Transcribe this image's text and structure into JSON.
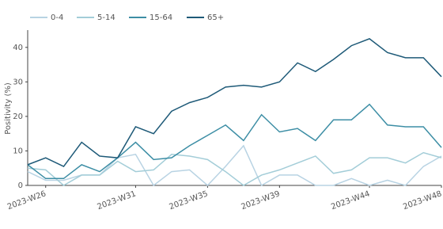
{
  "chart_data": {
    "type": "line",
    "y_label": "Positivity (%)",
    "categories": [
      null,
      "2023-W26",
      null,
      null,
      null,
      null,
      "2023-W31",
      null,
      null,
      null,
      "2023-W35",
      null,
      null,
      null,
      "2023-W39",
      null,
      null,
      null,
      null,
      "2023-W44",
      null,
      null,
      null,
      "2023-W48"
    ],
    "series": [
      {
        "name": "0-4",
        "color": "#b8d3e3",
        "values": [
          4,
          1.5,
          1.5,
          3,
          3,
          8,
          9,
          0,
          4,
          4.5,
          0,
          5.5,
          11.5,
          0,
          3,
          3,
          0,
          0,
          2,
          0,
          1.5,
          0,
          5.5,
          8.5
        ]
      },
      {
        "name": "5-14",
        "color": "#a3cdd8",
        "values": [
          5,
          4.5,
          0,
          3,
          3,
          7,
          4,
          4.5,
          9,
          8.5,
          7.5,
          4,
          0,
          3,
          4.5,
          6.5,
          8.5,
          3.5,
          4.5,
          8,
          8,
          6.5,
          9.5,
          8
        ]
      },
      {
        "name": "15-64",
        "color": "#3d8ea5",
        "values": [
          6,
          2,
          2,
          6,
          4,
          8,
          12.5,
          7.5,
          8,
          11.5,
          14.5,
          17.5,
          13,
          20.5,
          15.5,
          16.5,
          13,
          19,
          19,
          23.5,
          17.5,
          17,
          17,
          11
        ]
      },
      {
        "name": "65+",
        "color": "#1e5a78",
        "values": [
          6,
          8,
          5.5,
          12.5,
          8.5,
          8,
          17,
          15,
          21.5,
          24,
          25.5,
          28.5,
          29,
          28.5,
          30,
          35.5,
          33,
          36.5,
          40.5,
          42.5,
          38.5,
          37,
          37,
          31.5
        ]
      }
    ],
    "ylim": [
      0,
      45
    ],
    "yticks": [
      0,
      10,
      20,
      30,
      40
    ],
    "grid": false,
    "legend": "top-left"
  }
}
